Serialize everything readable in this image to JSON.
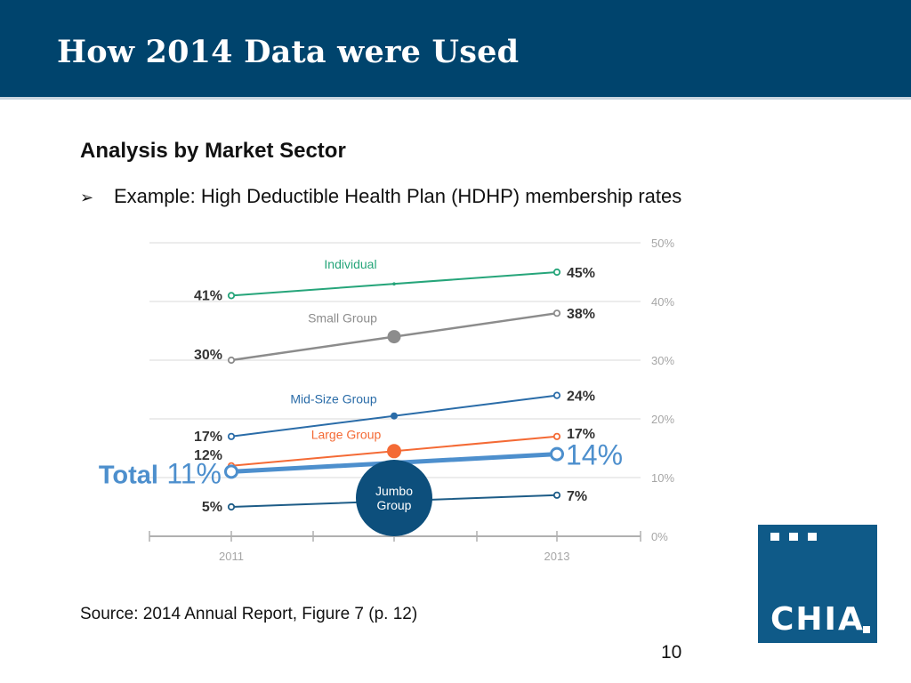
{
  "slide": {
    "title": "How 2014 Data were Used",
    "subtitle": "Analysis by Market Sector",
    "bullet": "Example: High Deductible Health Plan (HDHP) membership rates",
    "bullet_icon": "arrow-bullet-icon",
    "source": "Source: 2014 Annual Report, Figure 7 (p. 12)",
    "page_number": "10",
    "logo_text": "CHIA",
    "colors": {
      "header_bg": "#00446d",
      "logo_bg": "#0f5a88"
    }
  },
  "chart_data": {
    "type": "line",
    "title": "",
    "xlabel": "",
    "ylabel": "",
    "x": [
      "2011",
      "2013"
    ],
    "y_ticks": [
      "0%",
      "10%",
      "20%",
      "30%",
      "40%",
      "50%"
    ],
    "ylim": [
      0,
      50
    ],
    "grid": true,
    "series": [
      {
        "name": "Individual",
        "values": [
          41,
          45
        ],
        "labels": [
          "41%",
          "45%"
        ],
        "color": "#26a57a",
        "width": 2
      },
      {
        "name": "Small Group",
        "values": [
          30,
          38
        ],
        "labels": [
          "30%",
          "38%"
        ],
        "color": "#8c8c8c",
        "width": 2.5
      },
      {
        "name": "Mid-Size Group",
        "values": [
          17,
          24
        ],
        "labels": [
          "17%",
          "24%"
        ],
        "color": "#2a6ca8",
        "width": 2
      },
      {
        "name": "Large Group",
        "values": [
          12,
          17
        ],
        "labels": [
          "12%",
          "17%"
        ],
        "color": "#f46a35",
        "width": 2
      },
      {
        "name": "Total",
        "values": [
          11,
          14
        ],
        "labels": [
          "11%",
          "14%"
        ],
        "color": "#4d8fcd",
        "width": 5,
        "emphasis": true,
        "start_prefix": "Total"
      },
      {
        "name": "Jumbo Group",
        "values": [
          5,
          7
        ],
        "labels": [
          "5%",
          "7%"
        ],
        "color": "#1d5c87",
        "width": 2
      }
    ],
    "callout": {
      "text": [
        "Jumbo",
        "Group"
      ],
      "color": "#0d4f7c"
    }
  }
}
